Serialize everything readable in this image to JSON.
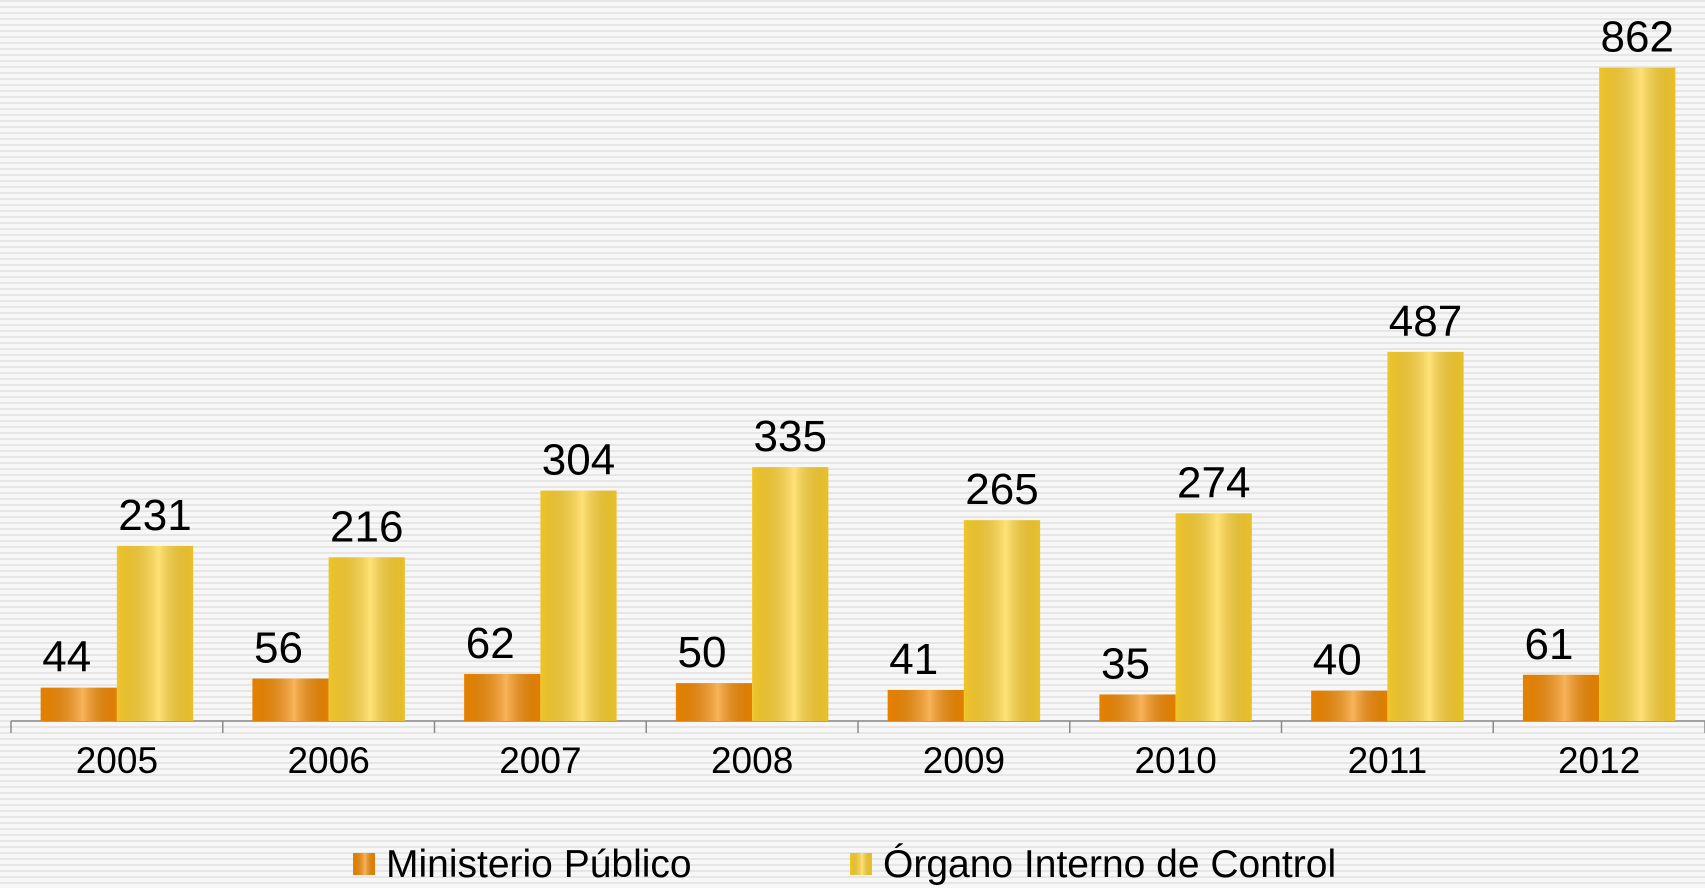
{
  "chart_data": {
    "type": "bar",
    "categories": [
      "2005",
      "2006",
      "2007",
      "2008",
      "2009",
      "2010",
      "2011",
      "2012"
    ],
    "series": [
      {
        "name": "Ministerio Público",
        "color": "#f58a00",
        "values": [
          44,
          56,
          62,
          50,
          41,
          35,
          40,
          61
        ]
      },
      {
        "name": "Órgano Interno de Control",
        "color": "#ffd22e",
        "values": [
          231,
          216,
          304,
          335,
          265,
          274,
          487,
          862
        ]
      }
    ],
    "ylim": [
      0,
      950
    ],
    "grid": false,
    "legend": "bottom"
  }
}
